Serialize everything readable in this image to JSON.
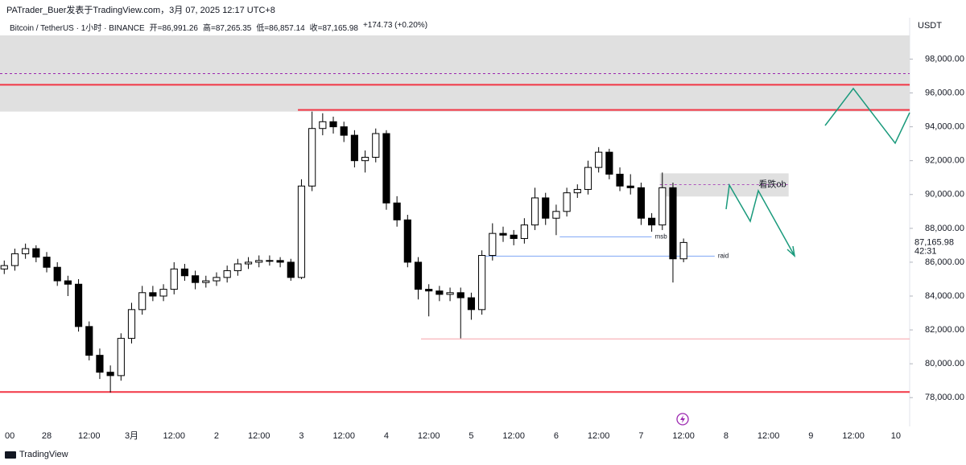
{
  "chart_data": {
    "type": "candlestick",
    "title": "PATrader_Buer发表于TradingView.com，3月 07, 2025 12:17 UTC+8",
    "legend": {
      "symbol": "Bitcoin / TetherUS · 1小时 · BINANCE",
      "open": "开=86,991.26",
      "high": "高=87,265.35",
      "low": "低=86,857.14",
      "close": "收=87,165.98",
      "change": "+174.73 (+0.20%)"
    },
    "currency": "USDT",
    "brand": "TradingView",
    "countdown": "42:31",
    "last_price": {
      "value": 87165.98,
      "label": "87,165.98"
    },
    "xlim": [
      -13.2,
      243.9
    ],
    "ylim": [
      76300,
      99400
    ],
    "xticks": [
      {
        "value": -11,
        "label": "00"
      },
      {
        "value": 0,
        "label": "28"
      },
      {
        "value": 12,
        "label": "12:00"
      },
      {
        "value": 24,
        "label": "3月"
      },
      {
        "value": 36,
        "label": "12:00"
      },
      {
        "value": 48,
        "label": "2"
      },
      {
        "value": 60,
        "label": "12:00"
      },
      {
        "value": 72,
        "label": "3"
      },
      {
        "value": 84,
        "label": "12:00"
      },
      {
        "value": 96,
        "label": "4"
      },
      {
        "value": 108,
        "label": "12:00"
      },
      {
        "value": 120,
        "label": "5"
      },
      {
        "value": 132,
        "label": "12:00"
      },
      {
        "value": 144,
        "label": "6"
      },
      {
        "value": 156,
        "label": "12:00"
      },
      {
        "value": 168,
        "label": "7"
      },
      {
        "value": 180,
        "label": "12:00"
      },
      {
        "value": 192,
        "label": "8"
      },
      {
        "value": 204,
        "label": "12:00"
      },
      {
        "value": 216,
        "label": "9"
      },
      {
        "value": 228,
        "label": "12:00"
      },
      {
        "value": 240,
        "label": "10"
      }
    ],
    "yticks": [
      {
        "value": 78000,
        "label": "78,000.00"
      },
      {
        "value": 80000,
        "label": "80,000.00"
      },
      {
        "value": 82000,
        "label": "82,000.00"
      },
      {
        "value": 84000,
        "label": "84,000.00"
      },
      {
        "value": 86000,
        "label": "86,000.00"
      },
      {
        "value": 88000,
        "label": "88,000.00"
      },
      {
        "value": 90000,
        "label": "90,000.00"
      },
      {
        "value": 92000,
        "label": "92,000.00"
      },
      {
        "value": 94000,
        "label": "94,000.00"
      },
      {
        "value": 96000,
        "label": "96,000.00"
      },
      {
        "value": 98000,
        "label": "98,000.00"
      }
    ],
    "up_color": "#ffffff",
    "down_color": "#000000",
    "candles": {
      "x": [
        -12,
        -9,
        -6,
        -3,
        0,
        3,
        6,
        9,
        12,
        15,
        18,
        21,
        24,
        27,
        30,
        33,
        36,
        39,
        42,
        45,
        48,
        51,
        54,
        57,
        60,
        63,
        66,
        69,
        72,
        75,
        78,
        81,
        84,
        87,
        90,
        93,
        96,
        99,
        102,
        105,
        108,
        111,
        114,
        117,
        120,
        123,
        126,
        129,
        132,
        135,
        138,
        141,
        144,
        147,
        150,
        153,
        156,
        159,
        162,
        165,
        168,
        171,
        174,
        177,
        180
      ],
      "open": [
        85600,
        85800,
        86500,
        86800,
        86300,
        85700,
        84900,
        84700,
        82200,
        80500,
        79500,
        79300,
        81500,
        83200,
        84200,
        84000,
        84400,
        85600,
        85200,
        84800,
        84900,
        85100,
        85500,
        85900,
        86000,
        86100,
        86100,
        86000,
        85100,
        90500,
        93900,
        94300,
        94000,
        93500,
        92000,
        92200,
        93600,
        89500,
        88500,
        86000,
        84400,
        84300,
        84100,
        84200,
        83900,
        83200,
        86400,
        87700,
        87600,
        87400,
        88200,
        89800,
        88600,
        89000,
        90100,
        90300,
        91600,
        92500,
        91200,
        90500,
        90400,
        88600,
        88200,
        90400,
        86200
      ],
      "high": [
        86100,
        86800,
        87100,
        87000,
        86600,
        86000,
        85200,
        85000,
        82500,
        80900,
        79900,
        81800,
        83600,
        84600,
        84600,
        84700,
        86000,
        85900,
        85500,
        85200,
        85400,
        85800,
        86200,
        86300,
        86400,
        86400,
        86300,
        86200,
        90900,
        94900,
        94800,
        94600,
        94300,
        93800,
        92600,
        93900,
        93800,
        89900,
        88800,
        86300,
        84700,
        84600,
        84500,
        84500,
        84200,
        86700,
        88300,
        88100,
        87900,
        88600,
        90400,
        90100,
        89400,
        90400,
        90600,
        92000,
        92800,
        92700,
        91600,
        91200,
        90700,
        88900,
        91300,
        90700,
        87400
      ],
      "low": [
        85300,
        85500,
        86200,
        86000,
        85400,
        84600,
        84000,
        81900,
        80200,
        79100,
        78300,
        79000,
        81200,
        82900,
        83700,
        83700,
        84100,
        84900,
        84400,
        84500,
        84600,
        84800,
        85200,
        85600,
        85700,
        85800,
        85700,
        84900,
        85000,
        90200,
        93500,
        93600,
        93100,
        91600,
        91300,
        91900,
        89100,
        88100,
        85700,
        83800,
        82800,
        83700,
        83700,
        81500,
        82600,
        82900,
        86100,
        87200,
        87000,
        87100,
        87900,
        88200,
        87600,
        88700,
        89800,
        90000,
        91300,
        90900,
        90200,
        90000,
        88200,
        87800,
        87900,
        84800,
        86000
      ],
      "close": [
        85800,
        86500,
        86800,
        86300,
        85700,
        84900,
        84700,
        82200,
        80500,
        79500,
        79300,
        81500,
        83200,
        84200,
        84000,
        84400,
        85600,
        85200,
        84800,
        84900,
        85100,
        85500,
        85900,
        86000,
        86100,
        86100,
        86000,
        85100,
        90500,
        93900,
        94300,
        94000,
        93500,
        92000,
        92200,
        93600,
        89500,
        88500,
        86000,
        84400,
        84300,
        84100,
        84200,
        83900,
        83200,
        86400,
        87700,
        87600,
        87400,
        88200,
        89800,
        88600,
        89000,
        90100,
        90300,
        91600,
        92500,
        91200,
        90500,
        90400,
        88600,
        88200,
        90400,
        86200,
        87165.98
      ]
    },
    "zones": [
      {
        "low": 94900,
        "high": 99400,
        "from": -13.2,
        "to": 243.9,
        "color": "#e0e0e0"
      },
      {
        "low": 89880,
        "high": 91250,
        "from": 173.3,
        "to": 209.7,
        "color": "#e0e0e0",
        "mid": 90590,
        "label": "看跌ob"
      }
    ],
    "levels": [
      {
        "value": 97145,
        "color": "#9c27b0",
        "dashed": true
      },
      {
        "value": 96480,
        "color": "#f23645",
        "width": 2
      },
      {
        "value": 95000,
        "color": "#f23645",
        "width": 2,
        "from": 71
      },
      {
        "value": 81470,
        "color": "#f7a1a8",
        "width": 1,
        "from": 105.8
      },
      {
        "value": 78330,
        "color": "#f23645",
        "width": 2
      },
      {
        "value": 87500,
        "color": "#7ea6f5",
        "width": 1,
        "from": 145,
        "to": 171,
        "label": "msb"
      },
      {
        "value": 86360,
        "color": "#7ea6f5",
        "width": 1,
        "from": 122.8,
        "to": 188.8,
        "label": "raid"
      }
    ]
  }
}
